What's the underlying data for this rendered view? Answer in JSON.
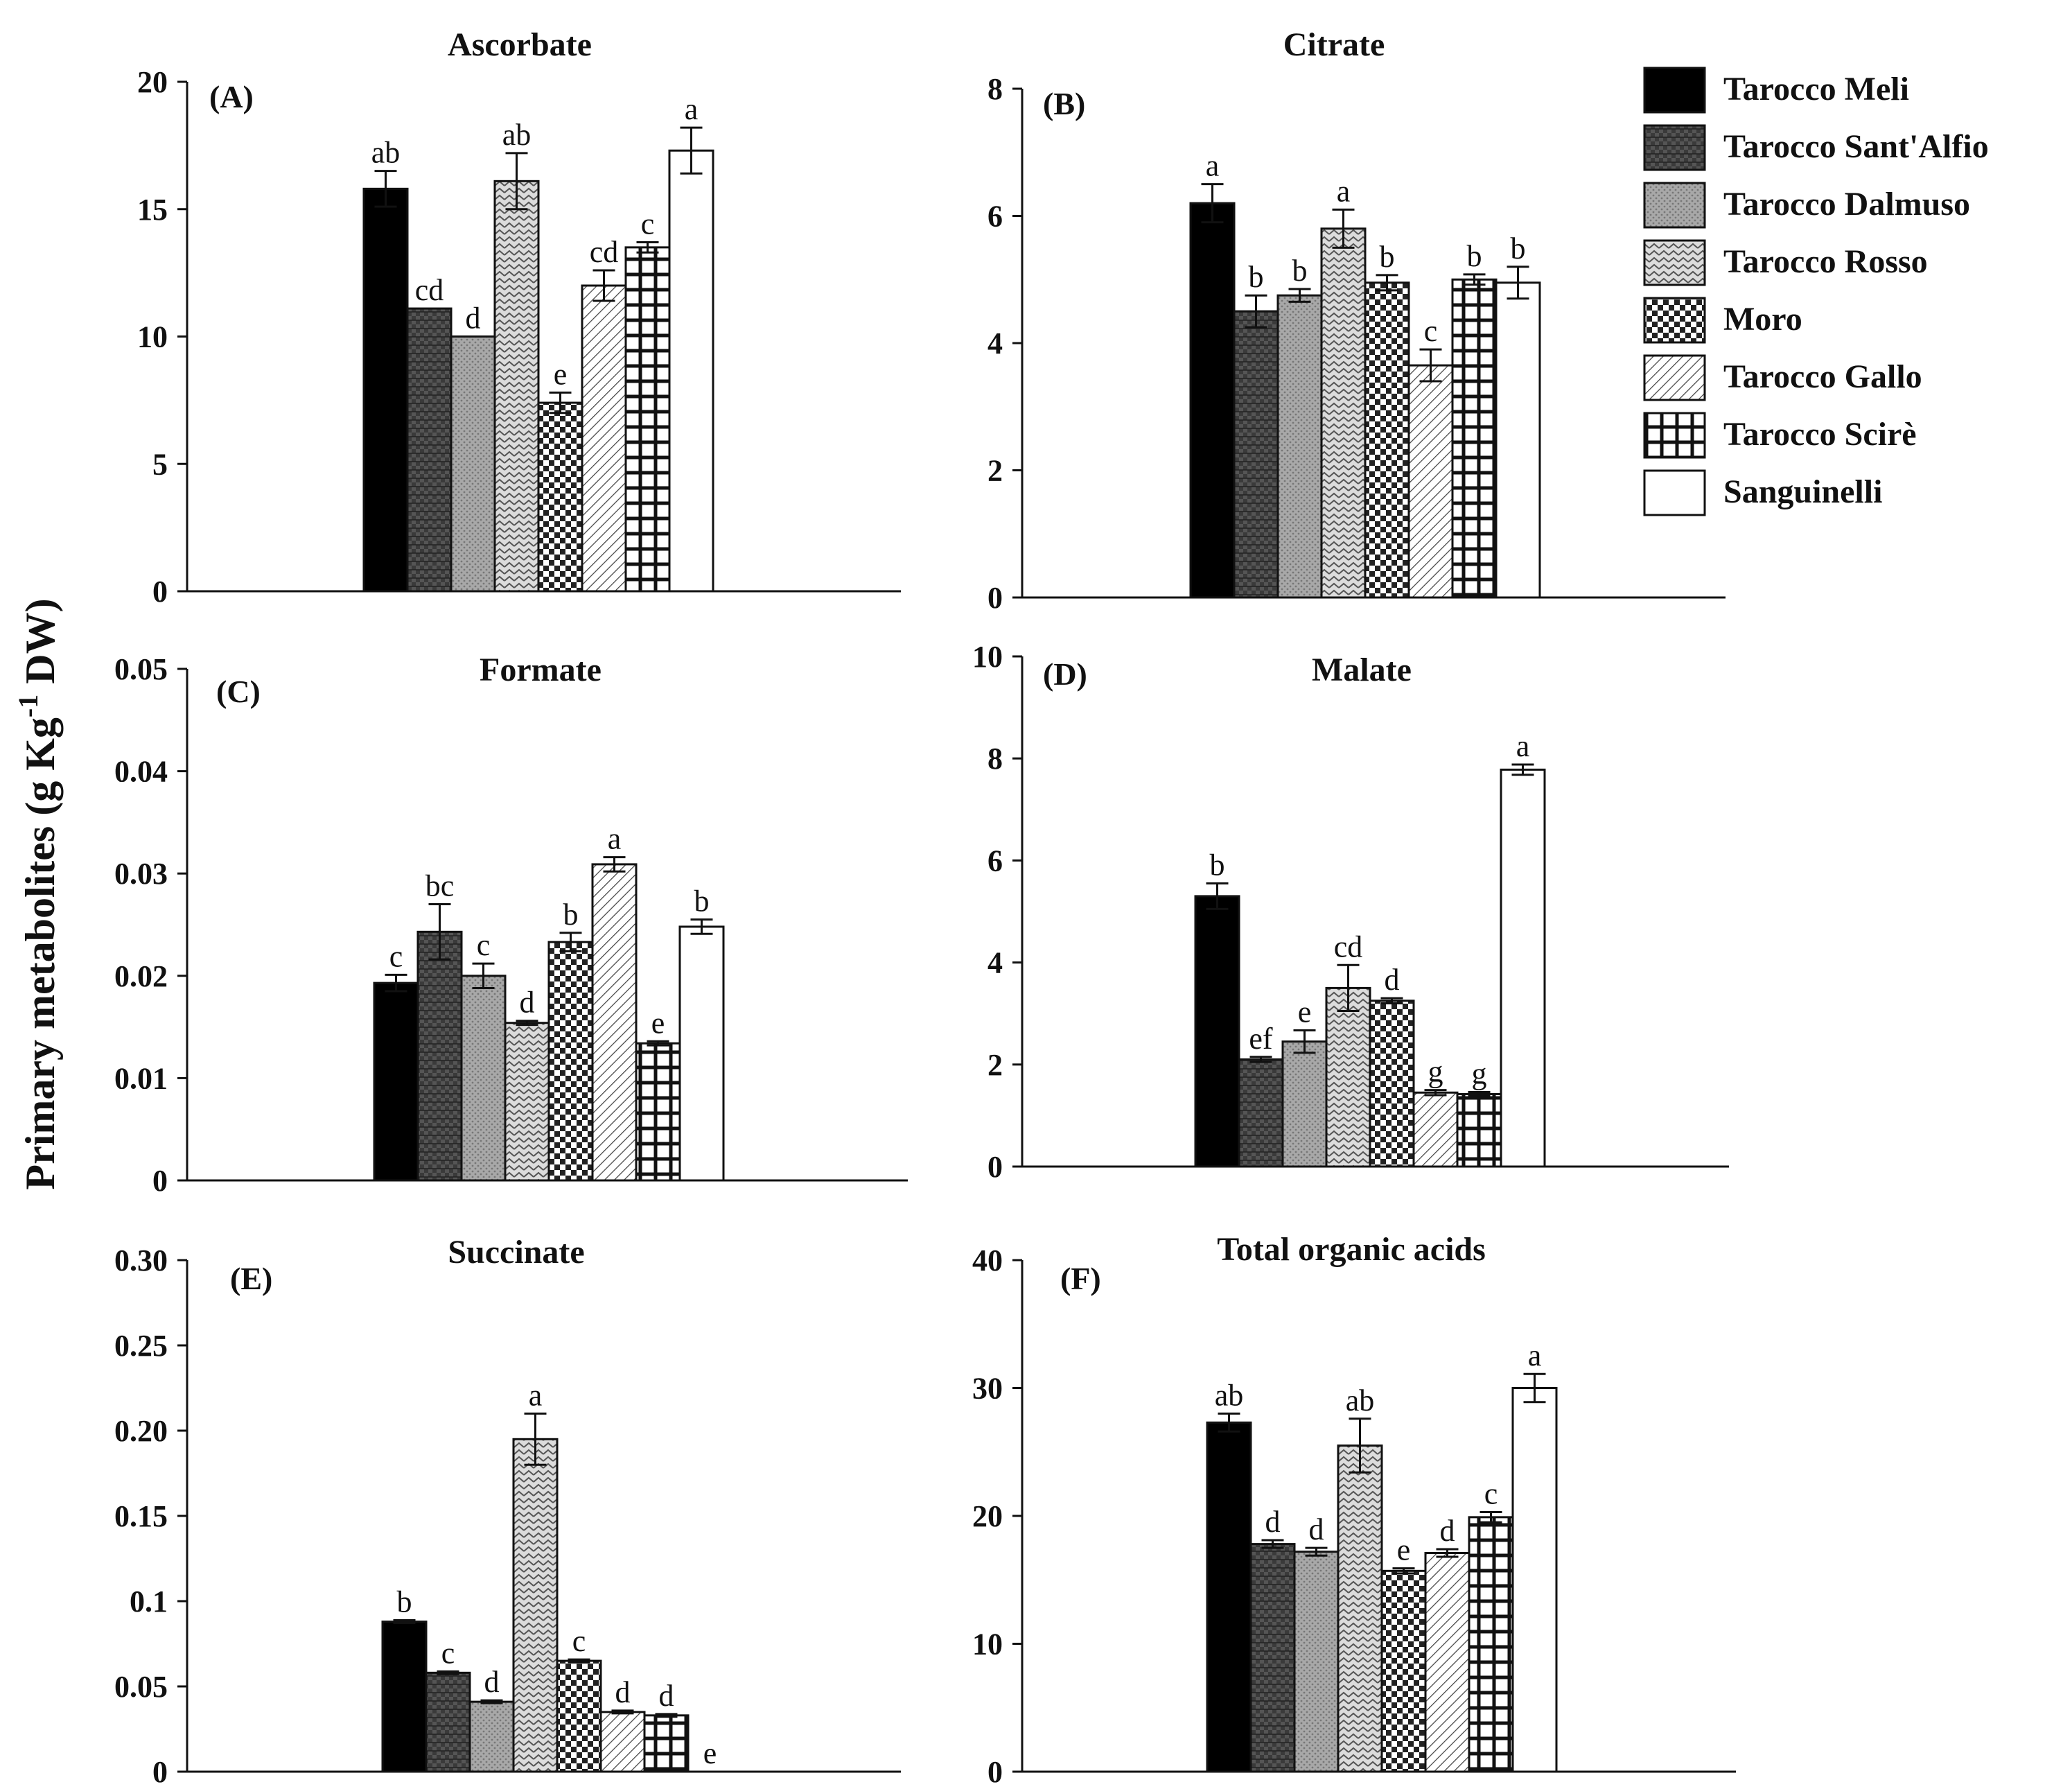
{
  "chart_data": {
    "type": "bar",
    "ylabel": "Primary metabolites (g Kg",
    "ylabel_sup": "-1",
    "ylabel_tail": " DW)",
    "legend": {
      "placement": "top-right",
      "entries": [
        {
          "name": "Tarocco Meli",
          "pattern": "solid-black"
        },
        {
          "name": "Tarocco Sant'Alfio",
          "pattern": "dark-brick"
        },
        {
          "name": "Tarocco Dalmuso",
          "pattern": "grey-dots"
        },
        {
          "name": "Tarocco Rosso",
          "pattern": "zigzag"
        },
        {
          "name": "Moro",
          "pattern": "checker"
        },
        {
          "name": "Tarocco Gallo",
          "pattern": "diagonal"
        },
        {
          "name": "Tarocco Scirè",
          "pattern": "grid"
        },
        {
          "name": "Sanguinelli",
          "pattern": "white"
        }
      ]
    },
    "panels": [
      {
        "tag": "(A)",
        "title": "Ascorbate",
        "ylim": [
          0,
          20
        ],
        "ticks": [
          "0",
          "5",
          "10",
          "15",
          "20"
        ],
        "values": [
          15.8,
          11.1,
          10.0,
          16.1,
          7.4,
          12.0,
          13.5,
          17.3
        ],
        "errors": [
          0.7,
          0.0,
          0.0,
          1.1,
          0.4,
          0.6,
          0.2,
          0.9
        ],
        "letters": [
          "ab",
          "cd",
          "d",
          "ab",
          "e",
          "cd",
          "c",
          "a"
        ]
      },
      {
        "tag": "(B)",
        "title": "Citrate",
        "ylim": [
          0,
          8
        ],
        "ticks": [
          "0",
          "2",
          "4",
          "6",
          "8"
        ],
        "values": [
          6.2,
          4.5,
          4.75,
          5.8,
          4.95,
          3.65,
          5.0,
          4.95
        ],
        "errors": [
          0.3,
          0.25,
          0.1,
          0.3,
          0.12,
          0.25,
          0.08,
          0.25
        ],
        "letters": [
          "a",
          "b",
          "b",
          "a",
          "b",
          "c",
          "b",
          "b"
        ]
      },
      {
        "tag": "(C)",
        "title": "Formate",
        "ylim": [
          0,
          0.05
        ],
        "ticks": [
          "0",
          "0.01",
          "0.02",
          "0.03",
          "0.04",
          "0.05"
        ],
        "values": [
          0.0193,
          0.0243,
          0.02,
          0.0154,
          0.0233,
          0.0309,
          0.0134,
          0.0248
        ],
        "errors": [
          0.0008,
          0.0027,
          0.0012,
          0.0002,
          0.0009,
          0.0007,
          0.0002,
          0.0007
        ],
        "letters": [
          "c",
          "bc",
          "c",
          "d",
          "b",
          "a",
          "e",
          "b"
        ]
      },
      {
        "tag": "(D)",
        "title": "Malate",
        "ylim": [
          0,
          10
        ],
        "ticks": [
          "0",
          "2",
          "4",
          "6",
          "8",
          "10"
        ],
        "values": [
          5.3,
          2.1,
          2.45,
          3.5,
          3.25,
          1.45,
          1.42,
          7.78
        ],
        "errors": [
          0.25,
          0.05,
          0.22,
          0.45,
          0.05,
          0.05,
          0.04,
          0.1
        ],
        "letters": [
          "b",
          "ef",
          "e",
          "cd",
          "d",
          "g",
          "g",
          "a"
        ]
      },
      {
        "tag": "(E)",
        "title": "Succinate",
        "ylim": [
          0,
          0.3
        ],
        "ticks": [
          "0",
          "0.05",
          "0.1",
          "0.15",
          "0.20",
          "0.25",
          "0.30"
        ],
        "values": [
          0.088,
          0.058,
          0.041,
          0.195,
          0.065,
          0.035,
          0.033,
          0.0
        ],
        "errors": [
          0.0008,
          0.0008,
          0.0008,
          0.015,
          0.0008,
          0.0008,
          0.0008,
          0.0
        ],
        "letters": [
          "b",
          "c",
          "d",
          "a",
          "c",
          "d",
          "d",
          "e"
        ]
      },
      {
        "tag": "(F)",
        "title": "Total organic acids",
        "ylim": [
          0,
          40
        ],
        "ticks": [
          "0",
          "10",
          "20",
          "30",
          "40"
        ],
        "values": [
          27.3,
          17.8,
          17.2,
          25.5,
          15.7,
          17.1,
          19.9,
          30.0
        ],
        "errors": [
          0.7,
          0.3,
          0.3,
          2.1,
          0.2,
          0.3,
          0.4,
          1.1
        ],
        "letters": [
          "ab",
          "d",
          "d",
          "ab",
          "e",
          "d",
          "c",
          "a"
        ]
      }
    ]
  }
}
